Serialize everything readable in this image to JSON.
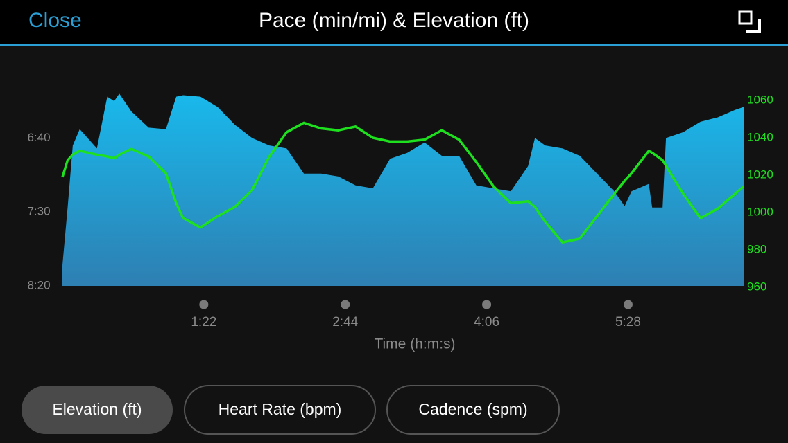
{
  "header": {
    "close": "Close",
    "title": "Pace (min/mi) & Elevation (ft)"
  },
  "chart_data": {
    "type": "combo",
    "xlabel": "Time (h:m:s)",
    "x": [
      0,
      3,
      6,
      10,
      20,
      26,
      30,
      33,
      40,
      50,
      60,
      66,
      70,
      80,
      90,
      100,
      110,
      120,
      130,
      140,
      150,
      160,
      170,
      180,
      190,
      200,
      210,
      220,
      230,
      240,
      250,
      260,
      270,
      274,
      280,
      290,
      300,
      310,
      320,
      326,
      330,
      340,
      342,
      348,
      350,
      360,
      370,
      380,
      390,
      395
    ],
    "xlim": [
      0,
      395
    ],
    "xticks": [
      {
        "value": 82,
        "label": "1:22"
      },
      {
        "value": 164,
        "label": "2:44"
      },
      {
        "value": 246,
        "label": "4:06"
      },
      {
        "value": 328,
        "label": "5:28"
      }
    ],
    "ylim": [
      500,
      375
    ],
    "yticks": [
      {
        "value": 400,
        "label": "6:40"
      },
      {
        "value": 450,
        "label": "7:30"
      },
      {
        "value": 500,
        "label": "8:20"
      }
    ],
    "y2lim": [
      960,
      1060
    ],
    "y2ticks": [
      960,
      980,
      1000,
      1020,
      1040,
      1060
    ],
    "series": [
      {
        "type": "area",
        "color": "#19b6ea",
        "values": [
          486,
          447,
          405,
          394,
          407,
          372,
          375,
          370,
          382,
          393,
          394,
          372,
          371,
          372,
          379,
          391,
          400,
          405,
          407,
          424,
          424,
          426,
          432,
          434,
          414,
          410,
          403,
          412,
          412,
          432,
          434,
          436,
          419,
          400,
          405,
          407,
          412,
          424,
          436,
          446,
          436,
          431,
          447,
          447,
          400,
          396,
          389,
          386,
          381,
          379
        ]
      },
      {
        "type": "line",
        "color": "#1fe01f",
        "axis": "y2",
        "values": [
          1019,
          1028,
          1031,
          1033,
          1031,
          1030,
          1029,
          1031,
          1034,
          1030,
          1021,
          1005,
          997,
          992,
          998,
          1003,
          1012,
          1030,
          1043,
          1048,
          1045,
          1044,
          1046,
          1040,
          1038,
          1038,
          1039,
          1044,
          1039,
          1027,
          1014,
          1005,
          1006,
          1003,
          995,
          984,
          986,
          998,
          1010,
          1017,
          1021,
          1033,
          1032,
          1028,
          1025,
          1010,
          997,
          1002,
          1010,
          1014
        ]
      }
    ]
  },
  "buttons": [
    "Elevation (ft)",
    "Heart Rate (bpm)",
    "Cadence (spm)"
  ]
}
